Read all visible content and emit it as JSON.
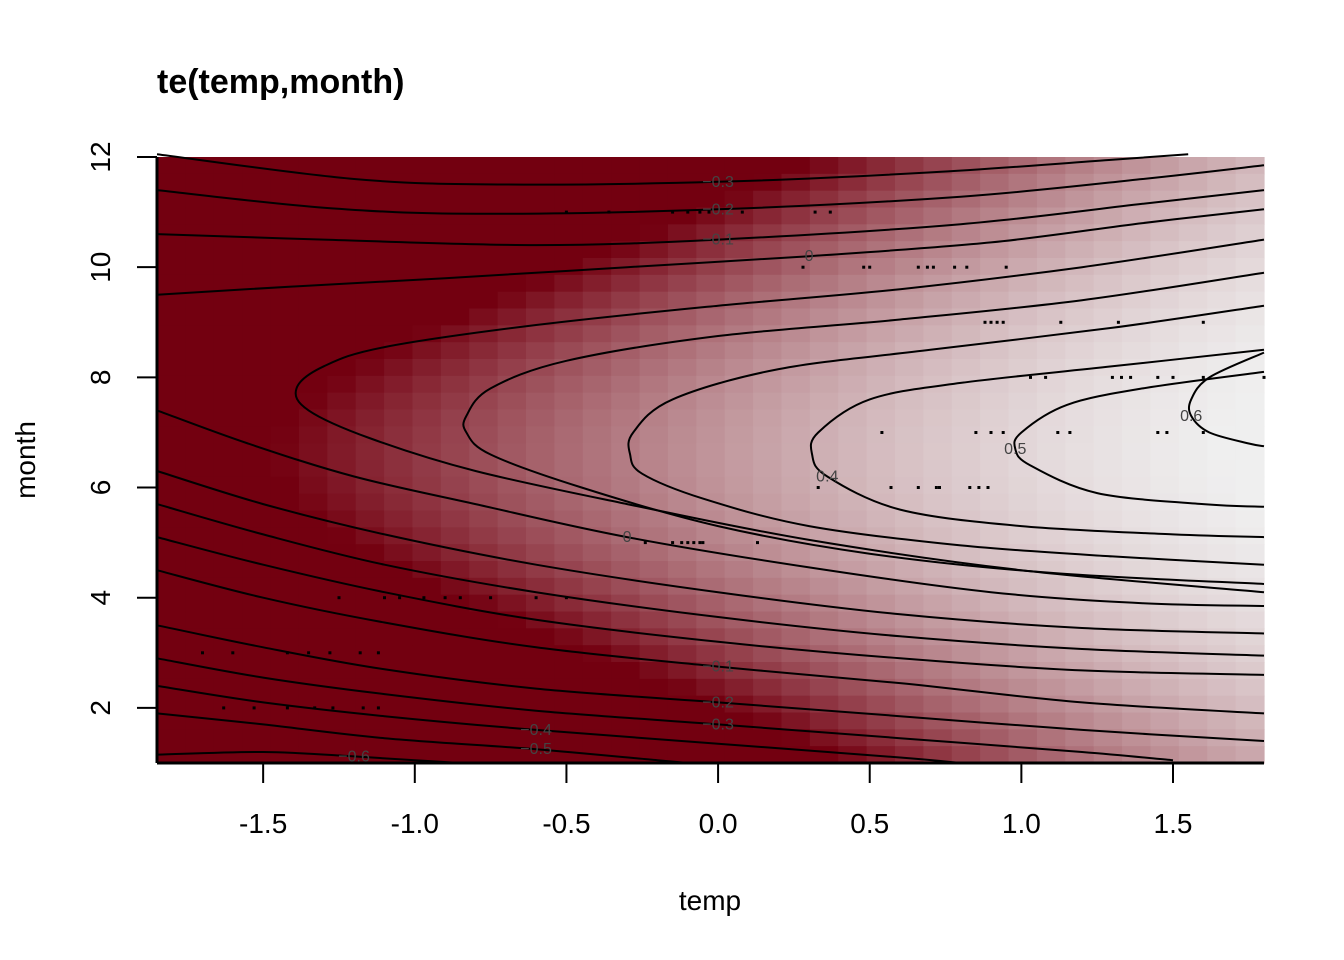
{
  "chart_data": {
    "type": "heatmap",
    "title": "te(temp,month)",
    "xlabel": "temp",
    "ylabel": "month",
    "xlim": [
      -1.85,
      1.8
    ],
    "ylim": [
      1,
      12
    ],
    "x_ticks": [
      {
        "value": -1.5,
        "label": "-1.5"
      },
      {
        "value": -1.0,
        "label": "-1.0"
      },
      {
        "value": -0.5,
        "label": "-0.5"
      },
      {
        "value": 0.0,
        "label": "0.0"
      },
      {
        "value": 0.5,
        "label": "0.5"
      },
      {
        "value": 1.0,
        "label": "1.0"
      },
      {
        "value": 1.5,
        "label": "1.5"
      }
    ],
    "y_ticks": [
      {
        "value": 2,
        "label": "2"
      },
      {
        "value": 4,
        "label": "4"
      },
      {
        "value": 6,
        "label": "6"
      },
      {
        "value": 8,
        "label": "8"
      },
      {
        "value": 10,
        "label": "10"
      },
      {
        "value": 12,
        "label": "12"
      }
    ],
    "color_scale": {
      "low": "#730010",
      "high": "#efefef",
      "zmin": -0.8,
      "zmax": 0.7
    },
    "contours": [
      {
        "level": -0.3,
        "label": "−0.3",
        "points": [
          [
            -1.85,
            12.05
          ],
          [
            -1.2,
            11.6
          ],
          [
            -0.7,
            11.5
          ],
          [
            0,
            11.55
          ],
          [
            0.7,
            11.72
          ],
          [
            1.3,
            11.95
          ],
          [
            1.55,
            12.05
          ]
        ]
      },
      {
        "level": -0.2,
        "label": "−0.2",
        "points": [
          [
            -1.85,
            11.4
          ],
          [
            -1.3,
            11.08
          ],
          [
            -0.8,
            10.97
          ],
          [
            0,
            11.05
          ],
          [
            0.8,
            11.28
          ],
          [
            1.4,
            11.6
          ],
          [
            1.8,
            11.85
          ]
        ]
      },
      {
        "level": -0.1,
        "label": "−0.1",
        "points": [
          [
            -1.85,
            10.6
          ],
          [
            -1.3,
            10.5
          ],
          [
            -0.6,
            10.4
          ],
          [
            0,
            10.5
          ],
          [
            0.8,
            10.78
          ],
          [
            1.4,
            11.15
          ],
          [
            1.8,
            11.4
          ]
        ]
      },
      {
        "level": 0.0,
        "label": "0",
        "points": [
          [
            -1.85,
            9.5
          ],
          [
            -1.4,
            9.65
          ],
          [
            -0.9,
            9.8
          ],
          [
            -0.3,
            10.0
          ],
          [
            0.3,
            10.2
          ],
          [
            0.9,
            10.45
          ],
          [
            1.4,
            10.8
          ],
          [
            1.8,
            11.05
          ]
        ]
      },
      {
        "level": 0.1,
        "label": "",
        "points": [
          [
            1.8,
            10.5
          ],
          [
            1.2,
            10.0
          ],
          [
            0.6,
            9.6
          ],
          [
            0.0,
            9.3
          ],
          [
            -0.6,
            8.95
          ],
          [
            -1.1,
            8.55
          ],
          [
            -1.3,
            8.2
          ],
          [
            -1.39,
            7.8
          ],
          [
            -1.35,
            7.4
          ],
          [
            -1.15,
            6.9
          ],
          [
            -0.8,
            6.3
          ],
          [
            -0.3,
            5.7
          ],
          [
            0.3,
            5.05
          ],
          [
            1.0,
            4.5
          ],
          [
            1.8,
            4.1
          ]
        ]
      },
      {
        "level": 0.2,
        "label": "",
        "points": [
          [
            1.8,
            9.9
          ],
          [
            1.2,
            9.4
          ],
          [
            0.6,
            9.05
          ],
          [
            0.0,
            8.75
          ],
          [
            -0.5,
            8.3
          ],
          [
            -0.75,
            7.8
          ],
          [
            -0.83,
            7.3
          ],
          [
            -0.83,
            7.0
          ],
          [
            -0.75,
            6.6
          ],
          [
            -0.45,
            6.0
          ],
          [
            0.0,
            5.3
          ],
          [
            0.5,
            4.8
          ],
          [
            1.1,
            4.45
          ],
          [
            1.8,
            4.25
          ]
        ]
      },
      {
        "level": 0.3,
        "label": "",
        "points": [
          [
            1.8,
            9.3
          ],
          [
            1.3,
            8.9
          ],
          [
            0.7,
            8.5
          ],
          [
            0.2,
            8.15
          ],
          [
            -0.15,
            7.6
          ],
          [
            -0.28,
            7.0
          ],
          [
            -0.29,
            6.6
          ],
          [
            -0.25,
            6.25
          ],
          [
            -0.05,
            5.8
          ],
          [
            0.3,
            5.3
          ],
          [
            0.8,
            4.95
          ],
          [
            1.3,
            4.75
          ],
          [
            1.8,
            4.6
          ]
        ]
      },
      {
        "level": 0.4,
        "label": "0.4",
        "points": [
          [
            1.8,
            8.5
          ],
          [
            1.3,
            8.2
          ],
          [
            0.8,
            7.9
          ],
          [
            0.5,
            7.6
          ],
          [
            0.33,
            7.0
          ],
          [
            0.31,
            6.6
          ],
          [
            0.36,
            6.2
          ],
          [
            0.6,
            5.6
          ],
          [
            1.0,
            5.3
          ],
          [
            1.5,
            5.15
          ],
          [
            1.8,
            5.1
          ]
        ]
      },
      {
        "level": 0.5,
        "label": "0.5",
        "points": [
          [
            1.8,
            8.1
          ],
          [
            1.4,
            7.8
          ],
          [
            1.15,
            7.5
          ],
          [
            1.0,
            7.0
          ],
          [
            0.98,
            6.7
          ],
          [
            1.03,
            6.4
          ],
          [
            1.25,
            5.9
          ],
          [
            1.6,
            5.7
          ],
          [
            1.8,
            5.65
          ]
        ]
      },
      {
        "level": 0.6,
        "label": "0.6",
        "points": [
          [
            1.8,
            8.45
          ],
          [
            1.62,
            8.0
          ],
          [
            1.56,
            7.6
          ],
          [
            1.56,
            7.3
          ],
          [
            1.62,
            7.0
          ],
          [
            1.75,
            6.8
          ],
          [
            1.8,
            6.75
          ]
        ]
      },
      {
        "level": 0.0,
        "label": "0",
        "points": [
          [
            -1.85,
            7.4
          ],
          [
            -1.55,
            6.8
          ],
          [
            -1.2,
            6.2
          ],
          [
            -0.8,
            5.7
          ],
          [
            -0.3,
            5.1
          ],
          [
            0.3,
            4.55
          ],
          [
            0.9,
            4.1
          ],
          [
            1.4,
            3.9
          ],
          [
            1.8,
            3.85
          ]
        ]
      },
      {
        "level": -0.1,
        "label": "",
        "points": [
          [
            -1.85,
            6.3
          ],
          [
            -1.5,
            5.7
          ],
          [
            -1.1,
            5.15
          ],
          [
            -0.6,
            4.6
          ],
          [
            0.0,
            4.1
          ],
          [
            0.6,
            3.7
          ],
          [
            1.2,
            3.45
          ],
          [
            1.8,
            3.35
          ]
        ]
      },
      {
        "level": -0.2,
        "label": "",
        "points": [
          [
            -1.85,
            5.7
          ],
          [
            -1.5,
            5.15
          ],
          [
            -1.1,
            4.6
          ],
          [
            -0.6,
            4.1
          ],
          [
            0.0,
            3.65
          ],
          [
            0.6,
            3.3
          ],
          [
            1.2,
            3.07
          ],
          [
            1.8,
            2.95
          ]
        ]
      },
      {
        "level": -0.3,
        "label": "",
        "points": [
          [
            -1.85,
            5.1
          ],
          [
            -1.5,
            4.6
          ],
          [
            -1.1,
            4.1
          ],
          [
            -0.6,
            3.6
          ],
          [
            0.0,
            3.2
          ],
          [
            0.6,
            2.9
          ],
          [
            1.2,
            2.68
          ],
          [
            1.8,
            2.6
          ]
        ]
      },
      {
        "level": -0.1,
        "label": "−0.1",
        "points": [
          [
            -1.85,
            4.5
          ],
          [
            -1.5,
            4.0
          ],
          [
            -1.1,
            3.55
          ],
          [
            -0.6,
            3.1
          ],
          [
            0.0,
            2.75
          ],
          [
            0.6,
            2.45
          ],
          [
            1.2,
            2.1
          ],
          [
            1.8,
            1.9
          ]
        ]
      },
      {
        "level": -0.2,
        "label": "−0.2",
        "points": [
          [
            -1.85,
            3.5
          ],
          [
            -1.5,
            3.1
          ],
          [
            -1.1,
            2.7
          ],
          [
            -0.6,
            2.35
          ],
          [
            0.0,
            2.1
          ],
          [
            0.6,
            1.85
          ],
          [
            1.2,
            1.6
          ],
          [
            1.8,
            1.4
          ]
        ]
      },
      {
        "level": -0.3,
        "label": "−0.3",
        "points": [
          [
            -1.85,
            2.9
          ],
          [
            -1.5,
            2.55
          ],
          [
            -1.1,
            2.25
          ],
          [
            -0.6,
            1.95
          ],
          [
            0.0,
            1.7
          ],
          [
            0.6,
            1.45
          ],
          [
            1.2,
            1.2
          ],
          [
            1.5,
            1.05
          ]
        ]
      },
      {
        "level": -0.4,
        "label": "−0.4",
        "points": [
          [
            -1.85,
            2.4
          ],
          [
            -1.5,
            2.1
          ],
          [
            -1.1,
            1.85
          ],
          [
            -0.6,
            1.6
          ],
          [
            0.0,
            1.35
          ],
          [
            0.6,
            1.1
          ],
          [
            0.8,
            1.0
          ]
        ]
      },
      {
        "level": -0.5,
        "label": "−0.5",
        "points": [
          [
            -1.85,
            1.9
          ],
          [
            -1.5,
            1.7
          ],
          [
            -1.1,
            1.45
          ],
          [
            -0.6,
            1.25
          ],
          [
            -0.2,
            1.05
          ],
          [
            -0.1,
            1.0
          ]
        ]
      },
      {
        "level": -0.6,
        "label": "−0.6",
        "points": [
          [
            -1.85,
            1.15
          ],
          [
            -1.5,
            1.2
          ],
          [
            -1.2,
            1.12
          ],
          [
            -1.0,
            1.05
          ],
          [
            -0.85,
            1.0
          ]
        ]
      }
    ],
    "observations": [
      [
        -0.5,
        11
      ],
      [
        -0.36,
        11
      ],
      [
        -0.15,
        11
      ],
      [
        -0.1,
        11
      ],
      [
        -0.06,
        11
      ],
      [
        -0.03,
        11
      ],
      [
        0.08,
        11
      ],
      [
        0.32,
        11
      ],
      [
        0.37,
        11
      ],
      [
        0.28,
        10
      ],
      [
        0.48,
        10
      ],
      [
        0.5,
        10
      ],
      [
        0.66,
        10
      ],
      [
        0.69,
        10
      ],
      [
        0.71,
        10
      ],
      [
        0.78,
        10
      ],
      [
        0.82,
        10
      ],
      [
        0.95,
        10
      ],
      [
        0.88,
        9
      ],
      [
        0.9,
        9
      ],
      [
        0.92,
        9
      ],
      [
        0.94,
        9
      ],
      [
        1.13,
        9
      ],
      [
        1.32,
        9
      ],
      [
        1.6,
        9
      ],
      [
        1.03,
        8
      ],
      [
        1.08,
        8
      ],
      [
        1.3,
        8
      ],
      [
        1.33,
        8
      ],
      [
        1.36,
        8
      ],
      [
        1.45,
        8
      ],
      [
        1.5,
        8
      ],
      [
        1.6,
        8
      ],
      [
        1.8,
        8
      ],
      [
        0.54,
        7
      ],
      [
        0.85,
        7
      ],
      [
        0.9,
        7
      ],
      [
        0.94,
        7
      ],
      [
        1.12,
        7
      ],
      [
        1.16,
        7
      ],
      [
        1.45,
        7
      ],
      [
        1.48,
        7
      ],
      [
        1.6,
        7
      ],
      [
        0.33,
        6
      ],
      [
        0.57,
        6
      ],
      [
        0.66,
        6
      ],
      [
        0.72,
        6
      ],
      [
        0.73,
        6
      ],
      [
        0.83,
        6
      ],
      [
        0.86,
        6
      ],
      [
        0.89,
        6
      ],
      [
        -0.24,
        5
      ],
      [
        -0.15,
        5
      ],
      [
        -0.12,
        5
      ],
      [
        -0.1,
        5
      ],
      [
        -0.08,
        5
      ],
      [
        -0.06,
        5
      ],
      [
        -0.05,
        5
      ],
      [
        0.13,
        5
      ],
      [
        -1.25,
        4
      ],
      [
        -1.1,
        4
      ],
      [
        -1.05,
        4
      ],
      [
        -0.97,
        4
      ],
      [
        -0.9,
        4
      ],
      [
        -0.85,
        4
      ],
      [
        -0.75,
        4
      ],
      [
        -0.6,
        4
      ],
      [
        -0.5,
        4
      ],
      [
        -1.7,
        3
      ],
      [
        -1.6,
        3
      ],
      [
        -1.42,
        3
      ],
      [
        -1.35,
        3
      ],
      [
        -1.28,
        3
      ],
      [
        -1.18,
        3
      ],
      [
        -1.12,
        3
      ],
      [
        -1.63,
        2
      ],
      [
        -1.53,
        2
      ],
      [
        -1.42,
        2
      ],
      [
        -1.33,
        2
      ],
      [
        -1.27,
        2
      ],
      [
        -1.17,
        2
      ],
      [
        -1.12,
        2
      ]
    ]
  }
}
